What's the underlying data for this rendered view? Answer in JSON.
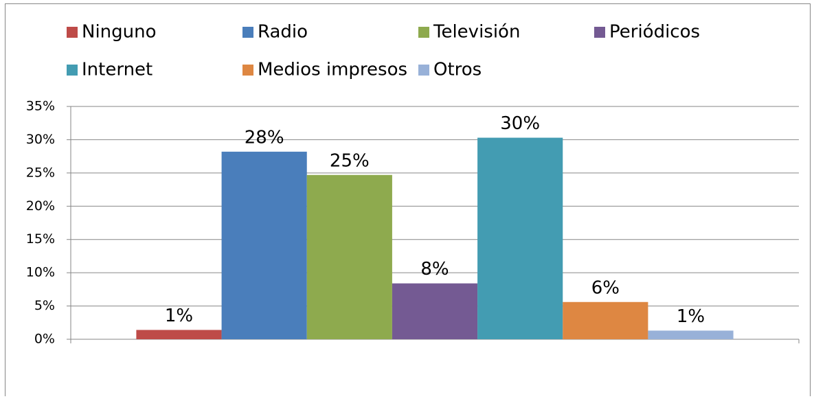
{
  "chart_data": {
    "type": "bar",
    "categories": [
      null
    ],
    "series": [
      {
        "name": "Ninguno",
        "color": "#be4b48",
        "values": [
          1.4
        ],
        "value_labels": [
          "1%"
        ]
      },
      {
        "name": "Radio",
        "color": "#4a7ebb",
        "values": [
          28.2
        ],
        "value_labels": [
          "28%"
        ]
      },
      {
        "name": "Televisión",
        "color": "#8eaa4e",
        "values": [
          24.7
        ],
        "value_labels": [
          "25%"
        ]
      },
      {
        "name": "Periódicos",
        "color": "#745a93",
        "values": [
          8.4
        ],
        "value_labels": [
          "8%"
        ]
      },
      {
        "name": "Internet",
        "color": "#439cb2",
        "values": [
          30.3
        ],
        "value_labels": [
          "30%"
        ]
      },
      {
        "name": "Medios impresos",
        "color": "#de8742",
        "values": [
          5.6
        ],
        "value_labels": [
          "6%"
        ]
      },
      {
        "name": "Otros",
        "color": "#98b1d8",
        "values": [
          1.3
        ],
        "value_labels": [
          "1%"
        ]
      }
    ],
    "ylim": [
      0,
      35
    ],
    "yticks": [
      {
        "value": 0,
        "label": "0%"
      },
      {
        "value": 5,
        "label": "5%"
      },
      {
        "value": 10,
        "label": "10%"
      },
      {
        "value": 15,
        "label": "15%"
      },
      {
        "value": 20,
        "label": "20%"
      },
      {
        "value": 25,
        "label": "25%"
      },
      {
        "value": 30,
        "label": "30%"
      },
      {
        "value": 35,
        "label": "35%"
      }
    ],
    "grid": true,
    "legend": "top"
  }
}
